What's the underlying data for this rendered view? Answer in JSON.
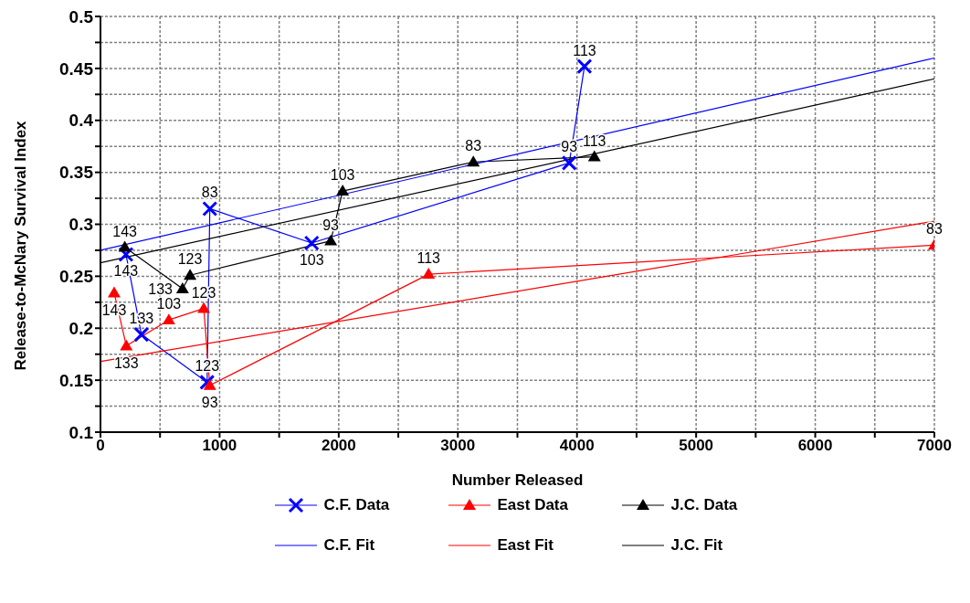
{
  "chart_data": {
    "type": "line",
    "xlabel": "Number Released",
    "ylabel": "Release-to-McNary Survival Index",
    "xlim": [
      0,
      7000
    ],
    "ylim": [
      0.1,
      0.5
    ],
    "xticks": [
      0,
      {
        "value": 500,
        "label": null
      },
      1000,
      {
        "value": 1500,
        "label": null
      },
      2000,
      {
        "value": 2500,
        "label": null
      },
      3000,
      {
        "value": 3500,
        "label": null
      },
      4000,
      {
        "value": 4500,
        "label": null
      },
      5000,
      {
        "value": 5500,
        "label": null
      },
      6000,
      {
        "value": 6500,
        "label": null
      },
      7000
    ],
    "yticks": [
      0.1,
      {
        "value": 0.125,
        "label": null
      },
      0.15,
      {
        "value": 0.175,
        "label": null
      },
      0.2,
      {
        "value": 0.225,
        "label": null
      },
      0.25,
      {
        "value": 0.275,
        "label": null
      },
      0.3,
      {
        "value": 0.325,
        "label": null
      },
      0.35,
      {
        "value": 0.375,
        "label": null
      },
      0.4,
      {
        "value": 0.425,
        "label": null
      },
      0.45,
      {
        "value": 0.475,
        "label": null
      },
      0.5
    ],
    "grid": true,
    "legend": "bottom",
    "line_style": "solid",
    "series": [
      {
        "name": "C.F. Data",
        "color": "#0000ff",
        "marker": "cross",
        "x": [
          214,
          344,
          895,
          918,
          1773,
          3935,
          4063
        ],
        "values": [
          0.271,
          0.194,
          0.148,
          0.315,
          0.282,
          0.359,
          0.452
        ]
      },
      {
        "name": "East Data",
        "color": "#ff0000",
        "marker": "triangle",
        "x": [
          115,
          217,
          574,
          867,
          918,
          2754,
          7000
        ],
        "values": [
          0.234,
          0.183,
          0.208,
          0.219,
          0.145,
          0.252,
          0.28
        ]
      },
      {
        "name": "J.C. Data",
        "color": "#000000",
        "marker": "triangle",
        "x": [
          204,
          689,
          752,
          1933,
          2033,
          3130,
          4146
        ],
        "values": [
          0.278,
          0.238,
          0.251,
          0.284,
          0.332,
          0.36,
          0.365
        ]
      },
      {
        "name": "C.F. Fit",
        "color": "#0000ff",
        "marker": "none",
        "x": [
          0,
          7000
        ],
        "values": [
          0.275,
          0.46
        ]
      },
      {
        "name": "East Fit",
        "color": "#ff0000",
        "marker": "none",
        "x": [
          0,
          7000
        ],
        "values": [
          0.168,
          0.303
        ]
      },
      {
        "name": "J.C. Fit",
        "color": "#000000",
        "marker": "none",
        "x": [
          0,
          7000
        ],
        "values": [
          0.263,
          0.44
        ]
      }
    ],
    "annotations": [
      {
        "text": "143",
        "x": 204,
        "y": 0.278
      },
      {
        "text": "133",
        "x": 689,
        "y": 0.238
      },
      {
        "text": "123",
        "x": 752,
        "y": 0.251
      },
      {
        "text": "93",
        "x": 1933,
        "y": 0.284
      },
      {
        "text": "103",
        "x": 2033,
        "y": 0.332
      },
      {
        "text": "83",
        "x": 3130,
        "y": 0.36
      },
      {
        "text": "113",
        "x": 4146,
        "y": 0.365
      },
      {
        "text": "143",
        "x": 214,
        "y": 0.271
      },
      {
        "text": "133",
        "x": 344,
        "y": 0.194
      },
      {
        "text": "123",
        "x": 895,
        "y": 0.148
      },
      {
        "text": "83",
        "x": 918,
        "y": 0.315
      },
      {
        "text": "103",
        "x": 1773,
        "y": 0.282
      },
      {
        "text": "93",
        "x": 3935,
        "y": 0.359
      },
      {
        "text": "113",
        "x": 4063,
        "y": 0.452
      },
      {
        "text": "143",
        "x": 115,
        "y": 0.234
      },
      {
        "text": "133",
        "x": 217,
        "y": 0.183
      },
      {
        "text": "103",
        "x": 574,
        "y": 0.208
      },
      {
        "text": "123",
        "x": 867,
        "y": 0.219
      },
      {
        "text": "93",
        "x": 918,
        "y": 0.145
      },
      {
        "text": "113",
        "x": 2754,
        "y": 0.252
      },
      {
        "text": "83",
        "x": 7000,
        "y": 0.28
      }
    ]
  }
}
